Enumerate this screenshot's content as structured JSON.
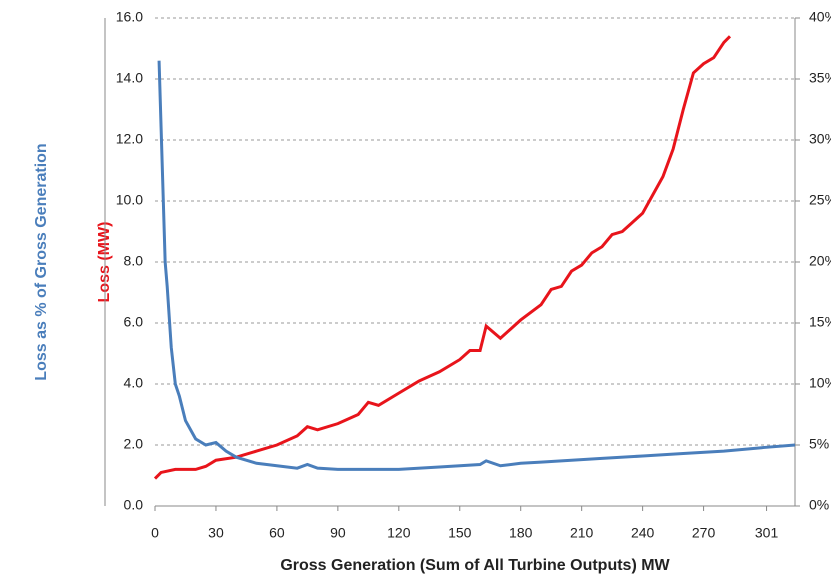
{
  "chart_data": {
    "type": "line",
    "x_label": "Gross Generation (Sum of All Turbine Outputs) MW",
    "y_label": "Loss (MW)",
    "y2_label": "Loss as % of Gross Generation",
    "xlim": [
      0,
      315
    ],
    "xticks": [
      0,
      30,
      60,
      90,
      120,
      150,
      180,
      210,
      240,
      270,
      301
    ],
    "ylim": [
      0,
      16
    ],
    "yticks": [
      {
        "value": 0,
        "label": "0.0"
      },
      {
        "value": 2,
        "label": "2.0"
      },
      {
        "value": 4,
        "label": "4.0"
      },
      {
        "value": 6,
        "label": "6.0"
      },
      {
        "value": 8,
        "label": "8.0"
      },
      {
        "value": 10,
        "label": "10.0"
      },
      {
        "value": 12,
        "label": "12.0"
      },
      {
        "value": 14,
        "label": "14.0"
      },
      {
        "value": 16,
        "label": "16.0"
      }
    ],
    "y2lim": [
      0,
      40
    ],
    "y2ticks": [
      {
        "value": 0,
        "label": "0%"
      },
      {
        "value": 5,
        "label": "5%"
      },
      {
        "value": 10,
        "label": "10%"
      },
      {
        "value": 15,
        "label": "15%"
      },
      {
        "value": 20,
        "label": "20%"
      },
      {
        "value": 25,
        "label": "25%"
      },
      {
        "value": 30,
        "label": "30%"
      },
      {
        "value": 35,
        "label": "35%"
      },
      {
        "value": 40,
        "label": "40%"
      }
    ],
    "grid": true,
    "series": [
      {
        "color": "#e8141b",
        "x": [
          0,
          3,
          10,
          20,
          25,
          30,
          40,
          50,
          60,
          70,
          75,
          80,
          90,
          100,
          105,
          110,
          120,
          130,
          140,
          150,
          155,
          160,
          163,
          170,
          175,
          180,
          190,
          195,
          200,
          205,
          210,
          215,
          220,
          225,
          230,
          235,
          240,
          245,
          250,
          255,
          260,
          265,
          270,
          275,
          280,
          283
        ],
        "values": [
          0.9,
          1.1,
          1.2,
          1.2,
          1.3,
          1.5,
          1.6,
          1.8,
          2.0,
          2.3,
          2.6,
          2.5,
          2.7,
          3.0,
          3.4,
          3.3,
          3.7,
          4.1,
          4.4,
          4.8,
          5.1,
          5.1,
          5.9,
          5.5,
          5.8,
          6.1,
          6.6,
          7.1,
          7.2,
          7.7,
          7.9,
          8.3,
          8.5,
          8.9,
          9.0,
          9.3,
          9.6,
          10.2,
          10.8,
          11.7,
          13.0,
          14.2,
          14.5,
          14.7,
          15.2,
          15.4
        ]
      },
      {
        "color": "#4a7ebb",
        "axis": "y2",
        "x": [
          2,
          5,
          6,
          8,
          10,
          12,
          15,
          20,
          25,
          30,
          35,
          40,
          50,
          60,
          70,
          75,
          80,
          90,
          100,
          110,
          120,
          140,
          160,
          163,
          170,
          180,
          190,
          200,
          220,
          240,
          260,
          280,
          300,
          315
        ],
        "values": [
          36.5,
          20,
          18,
          13,
          10,
          9,
          7,
          5.5,
          5,
          5.2,
          4.5,
          4,
          3.5,
          3.3,
          3.1,
          3.4,
          3.1,
          3,
          3,
          3,
          3,
          3.2,
          3.4,
          3.7,
          3.3,
          3.5,
          3.6,
          3.7,
          3.9,
          4.1,
          4.3,
          4.5,
          4.8,
          5
        ]
      }
    ]
  }
}
